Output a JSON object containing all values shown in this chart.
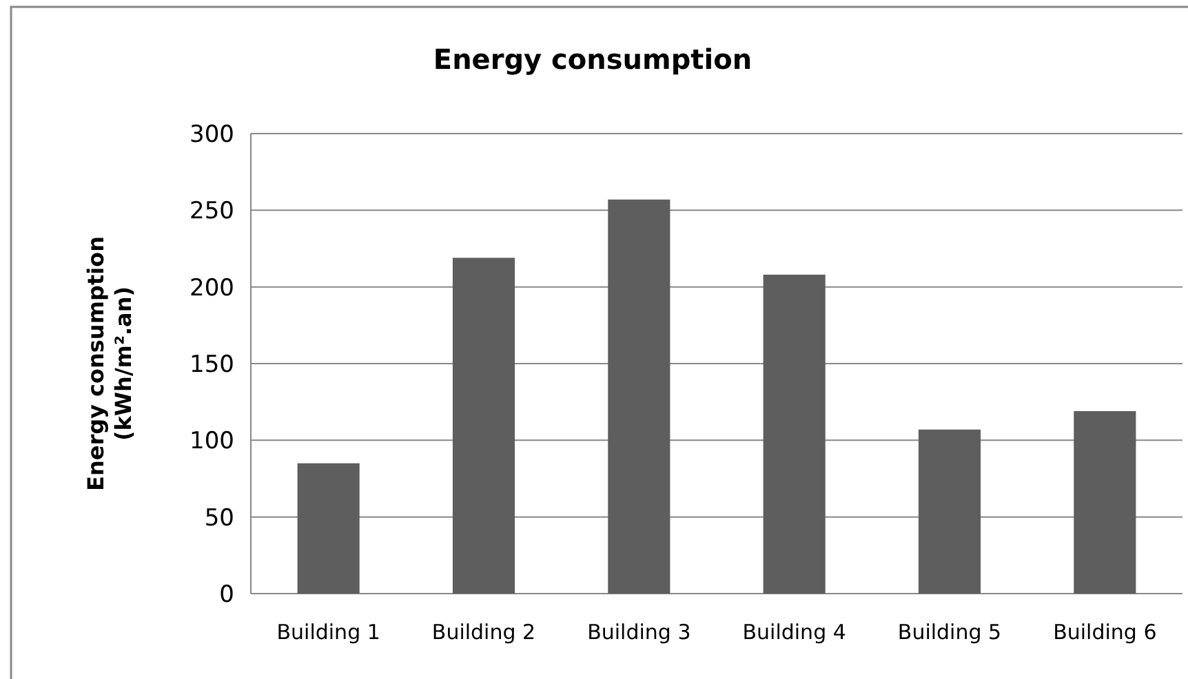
{
  "chart_data": {
    "type": "bar",
    "title": "Energy consumption",
    "ylabel": "Energy consumption\n(kWh/m².an)",
    "categories": [
      "Building 1",
      "Building 2",
      "Building 3",
      "Building 4",
      "Building 5",
      "Building 6"
    ],
    "values": [
      85,
      219,
      257,
      208,
      107,
      119
    ],
    "color": "#5e5e5e",
    "ylim": [
      0,
      300
    ],
    "yticks": [
      0,
      50,
      100,
      150,
      200,
      250,
      300
    ],
    "grid": "y"
  }
}
